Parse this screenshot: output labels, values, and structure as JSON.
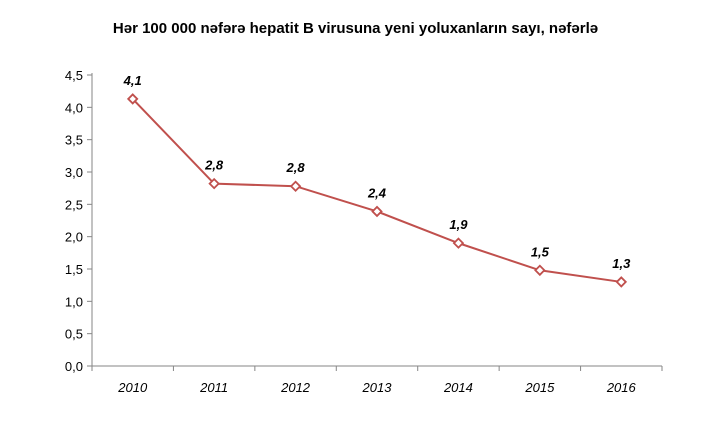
{
  "chart_data": {
    "type": "line",
    "title": "Hər 100 000 nəfərə hepatit B virusuna yeni yoluxanların sayı, nəfərlə",
    "xlabel": "",
    "ylabel": "",
    "categories": [
      "2010",
      "2011",
      "2012",
      "2013",
      "2014",
      "2015",
      "2016"
    ],
    "series": [
      {
        "values": [
          4.13,
          2.82,
          2.78,
          2.39,
          1.9,
          1.48,
          1.3
        ],
        "labels": [
          "4,1",
          "2,8",
          "2,8",
          "2,4",
          "1,9",
          "1,5",
          "1,3"
        ],
        "color": "#c0504d",
        "marker": "diamond-open"
      }
    ],
    "ylim": [
      0,
      4.5
    ],
    "yticks": [
      "0,0",
      "0,5",
      "1,0",
      "1,5",
      "2,0",
      "2,5",
      "3,0",
      "3,5",
      "4,0",
      "4,5"
    ],
    "grid": false,
    "legend": "none"
  }
}
